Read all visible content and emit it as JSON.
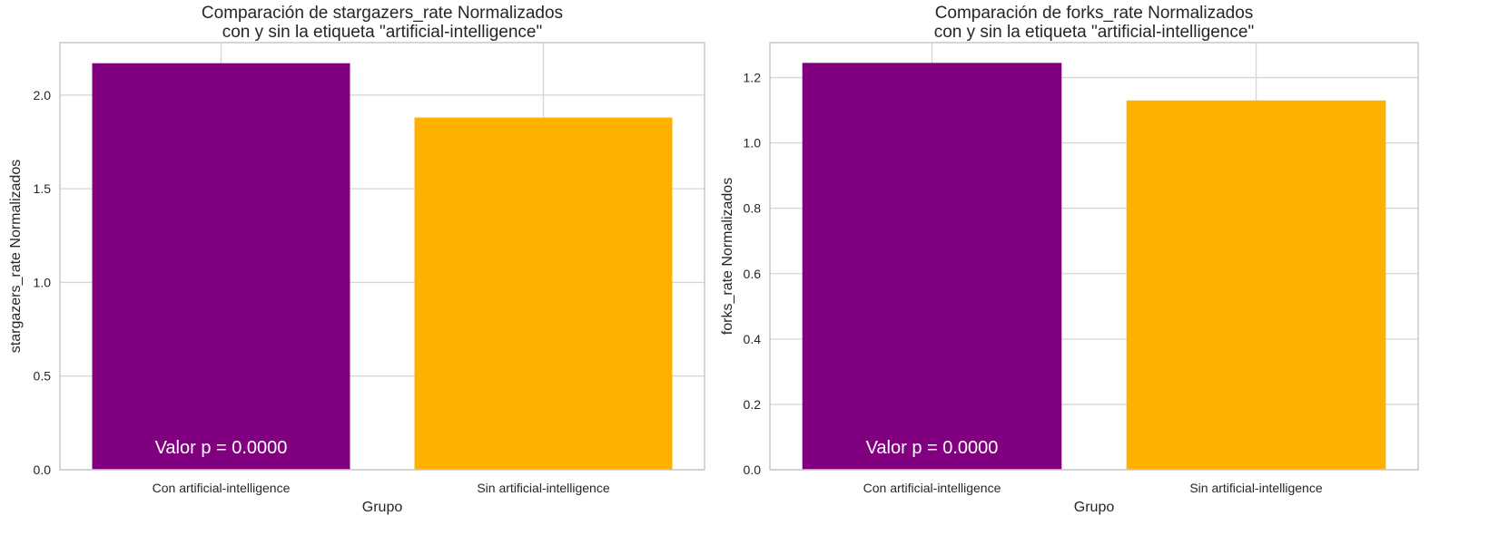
{
  "chart_data": [
    {
      "type": "bar",
      "title": "Comparación de stargazers_rate Normalizados\ncon y sin la etiqueta \"artificial-intelligence\"",
      "xlabel": "Grupo",
      "ylabel": "stargazers_rate Normalizados",
      "categories": [
        "Con artificial-intelligence",
        "Sin artificial-intelligence"
      ],
      "values": [
        2.17,
        1.88
      ],
      "colors": [
        "#800080",
        "#FFB000"
      ],
      "ylim": [
        0,
        2.28
      ],
      "yticks": [
        0.0,
        0.5,
        1.0,
        1.5,
        2.0
      ],
      "ytick_labels": [
        "0.0",
        "0.5",
        "1.0",
        "1.5",
        "2.0"
      ],
      "annotation": "Valor p = 0.0000",
      "grid": true
    },
    {
      "type": "bar",
      "title": "Comparación de forks_rate Normalizados\ncon y sin la etiqueta \"artificial-intelligence\"",
      "xlabel": "Grupo",
      "ylabel": "forks_rate Normalizados",
      "categories": [
        "Con artificial-intelligence",
        "Sin artificial-intelligence"
      ],
      "values": [
        1.245,
        1.13
      ],
      "colors": [
        "#800080",
        "#FFB000"
      ],
      "ylim": [
        0,
        1.307
      ],
      "yticks": [
        0.0,
        0.2,
        0.4,
        0.6,
        0.8,
        1.0,
        1.2
      ],
      "ytick_labels": [
        "0.0",
        "0.2",
        "0.4",
        "0.6",
        "0.8",
        "1.0",
        "1.2"
      ],
      "annotation": "Valor p = 0.0000",
      "grid": true
    }
  ]
}
